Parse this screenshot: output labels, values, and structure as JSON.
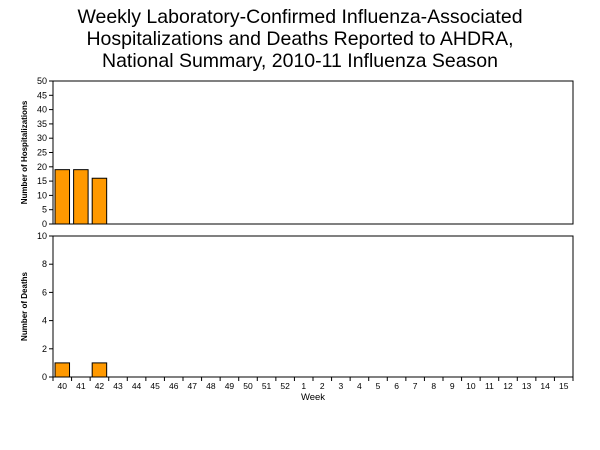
{
  "title_lines": [
    "Weekly Laboratory-Confirmed Influenza-Associated",
    "Hospitalizations and Deaths Reported to AHDRA,",
    "National Summary, 2010-11 Influenza Season"
  ],
  "colors": {
    "bar_fill": "#FF9900",
    "bar_stroke": "#000000",
    "frame": "#000000"
  },
  "chart_data": [
    {
      "type": "bar",
      "title": "",
      "xlabel": "",
      "ylabel": "Number of Hospitalizations",
      "ylim": [
        0,
        50
      ],
      "yticks": [
        0,
        5,
        10,
        15,
        20,
        25,
        30,
        35,
        40,
        45,
        50
      ],
      "grid": false,
      "categories": [
        "40",
        "41",
        "42",
        "43",
        "44",
        "45",
        "46",
        "47",
        "48",
        "49",
        "50",
        "51",
        "52",
        "1",
        "2",
        "3",
        "4",
        "5",
        "6",
        "7",
        "8",
        "9",
        "10",
        "11",
        "12",
        "13",
        "14",
        "15"
      ],
      "series": [
        {
          "values": [
            19,
            19,
            16,
            0,
            0,
            0,
            0,
            0,
            0,
            0,
            0,
            0,
            0,
            0,
            0,
            0,
            0,
            0,
            0,
            0,
            0,
            0,
            0,
            0,
            0,
            0,
            0,
            0
          ]
        }
      ]
    },
    {
      "type": "bar",
      "title": "",
      "xlabel": "Week",
      "ylabel": "Number of Deaths",
      "ylim": [
        0,
        10
      ],
      "yticks": [
        0,
        2,
        4,
        6,
        8,
        10
      ],
      "grid": false,
      "categories": [
        "40",
        "41",
        "42",
        "43",
        "44",
        "45",
        "46",
        "47",
        "48",
        "49",
        "50",
        "51",
        "52",
        "1",
        "2",
        "3",
        "4",
        "5",
        "6",
        "7",
        "8",
        "9",
        "10",
        "11",
        "12",
        "13",
        "14",
        "15"
      ],
      "series": [
        {
          "values": [
            1,
            0,
            1,
            0,
            0,
            0,
            0,
            0,
            0,
            0,
            0,
            0,
            0,
            0,
            0,
            0,
            0,
            0,
            0,
            0,
            0,
            0,
            0,
            0,
            0,
            0,
            0,
            0
          ]
        }
      ]
    }
  ]
}
